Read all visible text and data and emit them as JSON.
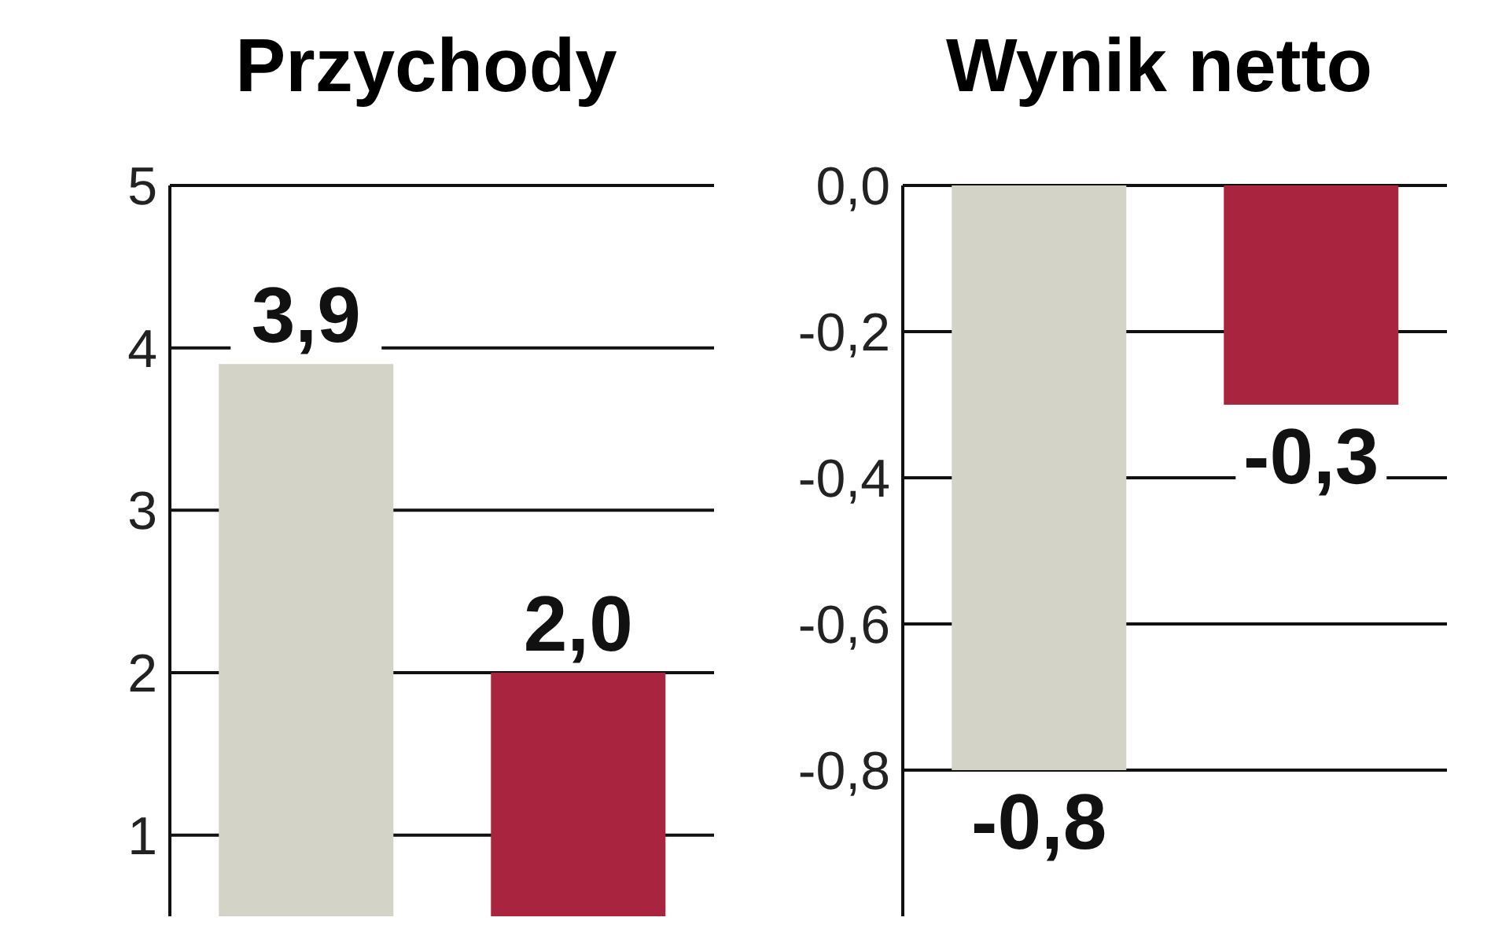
{
  "chart_data": [
    {
      "type": "bar",
      "title": "Przychody",
      "categories": [
        null,
        null
      ],
      "values": [
        3.9,
        2.0
      ],
      "colors": [
        "#d3d3c7",
        "#a8243f"
      ],
      "value_labels": [
        "3,9",
        "2,0"
      ],
      "ylim": [
        0.5,
        5
      ],
      "yticks": [
        1,
        2,
        3,
        4,
        5
      ],
      "grid": "y",
      "legend": false
    },
    {
      "type": "bar",
      "title": "Wynik netto",
      "categories": [
        null,
        null
      ],
      "values": [
        -0.8,
        -0.3
      ],
      "colors": [
        "#d3d3c7",
        "#a8243f"
      ],
      "value_labels": [
        "-0,8",
        "-0,3"
      ],
      "ylim": [
        -1.0,
        0
      ],
      "yticks": [
        {
          "value": 0,
          "label": "0,0"
        },
        {
          "value": -0.2,
          "label": "-0,2"
        },
        {
          "value": -0.4,
          "label": "-0,4"
        },
        {
          "value": -0.6,
          "label": "-0,6"
        },
        {
          "value": -0.8,
          "label": "-0,8"
        }
      ],
      "grid": "y",
      "legend": false
    }
  ]
}
